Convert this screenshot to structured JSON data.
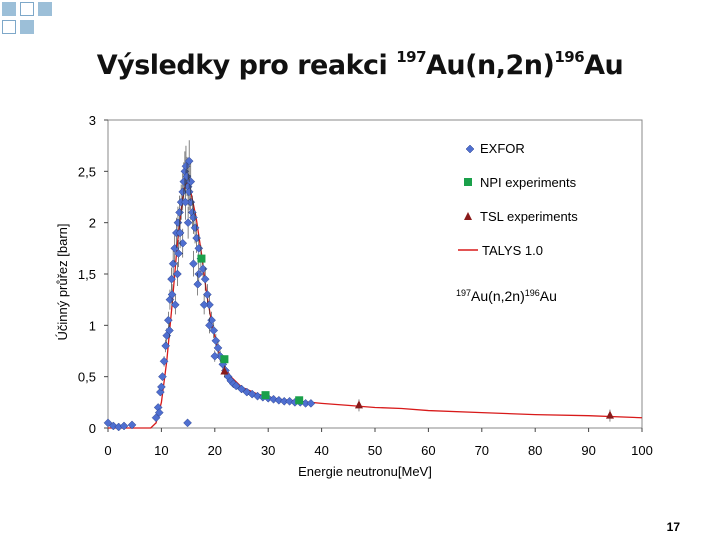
{
  "slide": {
    "title_prefix": "Výsledky pro reakci ",
    "title_sup1": "197",
    "title_mid": "Au(n,2n)",
    "title_sup2": "196",
    "title_end": "Au",
    "slide_number": "17",
    "colors": {
      "decor_fill": "#9cbfd8",
      "decor_border": "#7ea8c9"
    }
  },
  "chart_data": {
    "type": "scatter",
    "title": "",
    "xlabel": "Energie neutronu[MeV]",
    "ylabel": "Účinný průřez [barn]",
    "xlim": [
      0,
      100
    ],
    "ylim": [
      0,
      3
    ],
    "x_ticks": [
      "0",
      "10",
      "20",
      "30",
      "40",
      "50",
      "60",
      "70",
      "80",
      "90",
      "100"
    ],
    "y_ticks": [
      "0",
      "0,5",
      "1",
      "1,5",
      "2",
      "2,5",
      "3"
    ],
    "annotation": {
      "sup1": "197",
      "mid": "Au(n,2n)",
      "sup2": "196",
      "end": "Au"
    },
    "series": [
      {
        "name": "EXFOR",
        "marker": "diamond",
        "color": "#4f6fd0",
        "points": [
          [
            0,
            0.05
          ],
          [
            1,
            0.02
          ],
          [
            2,
            0.01
          ],
          [
            3,
            0.02
          ],
          [
            4.5,
            0.03
          ],
          [
            9,
            0.1
          ],
          [
            9.4,
            0.2
          ],
          [
            9.8,
            0.35
          ],
          [
            10.2,
            0.5
          ],
          [
            10.5,
            0.65
          ],
          [
            10.8,
            0.8
          ],
          [
            11,
            0.9
          ],
          [
            11.3,
            1.05
          ],
          [
            11.6,
            1.25
          ],
          [
            11.9,
            1.45
          ],
          [
            12.2,
            1.6
          ],
          [
            12.5,
            1.75
          ],
          [
            12.8,
            1.9
          ],
          [
            13.1,
            2.0
          ],
          [
            13.4,
            2.1
          ],
          [
            13.7,
            2.2
          ],
          [
            14,
            2.3
          ],
          [
            14.2,
            2.4
          ],
          [
            14.4,
            2.5
          ],
          [
            14.6,
            2.55
          ],
          [
            14.8,
            2.45
          ],
          [
            15,
            2.35
          ],
          [
            15.2,
            2.3
          ],
          [
            15.5,
            2.2
          ],
          [
            15.8,
            2.1
          ],
          [
            16,
            2.05
          ],
          [
            16.3,
            1.95
          ],
          [
            16.6,
            1.85
          ],
          [
            17,
            1.75
          ],
          [
            17.4,
            1.65
          ],
          [
            17.8,
            1.55
          ],
          [
            18.2,
            1.45
          ],
          [
            18.6,
            1.3
          ],
          [
            19,
            1.2
          ],
          [
            19.4,
            1.05
          ],
          [
            19.8,
            0.95
          ],
          [
            20.2,
            0.85
          ],
          [
            20.6,
            0.78
          ],
          [
            21,
            0.7
          ],
          [
            21.5,
            0.62
          ],
          [
            22,
            0.56
          ],
          [
            22.5,
            0.5
          ],
          [
            23,
            0.46
          ],
          [
            23.5,
            0.43
          ],
          [
            24,
            0.41
          ],
          [
            25,
            0.38
          ],
          [
            26,
            0.35
          ],
          [
            27,
            0.33
          ],
          [
            28,
            0.31
          ],
          [
            29,
            0.3
          ],
          [
            30,
            0.29
          ],
          [
            31,
            0.28
          ],
          [
            32,
            0.27
          ],
          [
            33,
            0.26
          ],
          [
            34,
            0.26
          ],
          [
            35,
            0.25
          ],
          [
            36,
            0.25
          ],
          [
            37,
            0.24
          ],
          [
            38,
            0.24
          ],
          [
            13,
            1.5
          ],
          [
            14,
            1.8
          ],
          [
            15,
            2.0
          ],
          [
            12,
            1.3
          ],
          [
            16,
            1.6
          ],
          [
            11.5,
            0.95
          ],
          [
            10,
            0.4
          ],
          [
            13.5,
            1.9
          ],
          [
            14.5,
            2.2
          ],
          [
            15.5,
            2.4
          ],
          [
            17,
            1.5
          ],
          [
            18,
            1.2
          ],
          [
            19,
            1.0
          ],
          [
            20,
            0.7
          ],
          [
            12.6,
            1.2
          ],
          [
            9.6,
            0.15
          ],
          [
            14.9,
            0.05
          ],
          [
            15.2,
            2.6
          ],
          [
            13.2,
            1.7
          ],
          [
            16.8,
            1.4
          ]
        ]
      },
      {
        "name": "NPI experiments",
        "marker": "square",
        "color": "#1aa04a",
        "points": [
          [
            17.5,
            1.65
          ],
          [
            21.8,
            0.67
          ],
          [
            29.5,
            0.32
          ],
          [
            35.8,
            0.27
          ]
        ]
      },
      {
        "name": "TSL experiments",
        "marker": "triangle",
        "color": "#8a1a1a",
        "points": [
          [
            21.8,
            0.55
          ],
          [
            47,
            0.22
          ],
          [
            94,
            0.12
          ]
        ]
      },
      {
        "name": "TALYS 1.0",
        "marker": "line",
        "color": "#d81a1a",
        "points": [
          [
            0,
            0
          ],
          [
            8,
            0
          ],
          [
            9,
            0.05
          ],
          [
            10,
            0.25
          ],
          [
            11,
            0.65
          ],
          [
            12,
            1.2
          ],
          [
            13,
            1.8
          ],
          [
            14,
            2.25
          ],
          [
            14.6,
            2.4
          ],
          [
            15.5,
            2.3
          ],
          [
            16.5,
            2.05
          ],
          [
            17.5,
            1.7
          ],
          [
            18.5,
            1.3
          ],
          [
            19.5,
            1.0
          ],
          [
            20.5,
            0.78
          ],
          [
            21.5,
            0.62
          ],
          [
            23,
            0.5
          ],
          [
            25,
            0.4
          ],
          [
            28,
            0.33
          ],
          [
            32,
            0.28
          ],
          [
            36,
            0.26
          ],
          [
            40,
            0.24
          ],
          [
            45,
            0.22
          ],
          [
            50,
            0.2
          ],
          [
            55,
            0.19
          ],
          [
            60,
            0.17
          ],
          [
            70,
            0.15
          ],
          [
            80,
            0.13
          ],
          [
            90,
            0.12
          ],
          [
            100,
            0.1
          ]
        ]
      }
    ]
  }
}
